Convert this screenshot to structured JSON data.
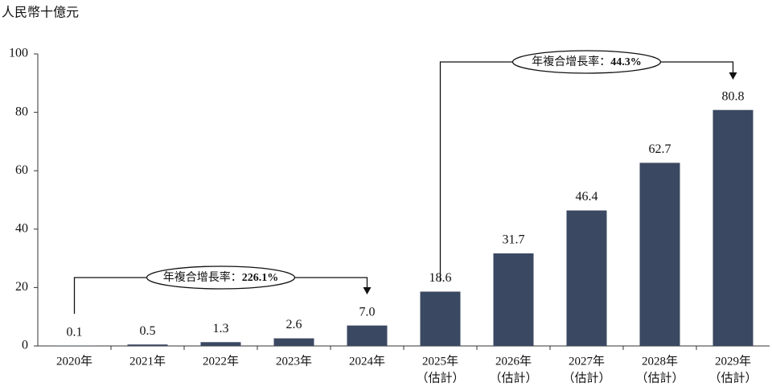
{
  "chart_data": {
    "type": "bar",
    "y_unit": "人民幣十億元",
    "categories": [
      "2020年",
      "2021年",
      "2022年",
      "2023年",
      "2024年",
      "2025年",
      "2026年",
      "2027年",
      "2028年",
      "2029年"
    ],
    "category_notes": [
      null,
      null,
      null,
      null,
      null,
      "（估計）",
      "（估計）",
      "（估計）",
      "（估計）",
      "（估計）"
    ],
    "values": [
      0.1,
      0.5,
      1.3,
      2.6,
      7,
      18.6,
      31.7,
      46.4,
      62.7,
      80.8
    ],
    "value_labels": [
      "0.1",
      "0.5",
      "1.3",
      "2.6",
      "7.0",
      "18.6",
      "31.7",
      "46.4",
      "62.7",
      "80.8"
    ],
    "color": "#3b4861",
    "ylim": [
      0,
      100
    ],
    "yticks": [
      0,
      20,
      40,
      60,
      80,
      100
    ],
    "grid": false,
    "annotations": [
      {
        "text": "年複合增長率：",
        "rate": "226.1%"
      },
      {
        "text": "年複合增長率：",
        "rate": "44.3%"
      }
    ]
  }
}
